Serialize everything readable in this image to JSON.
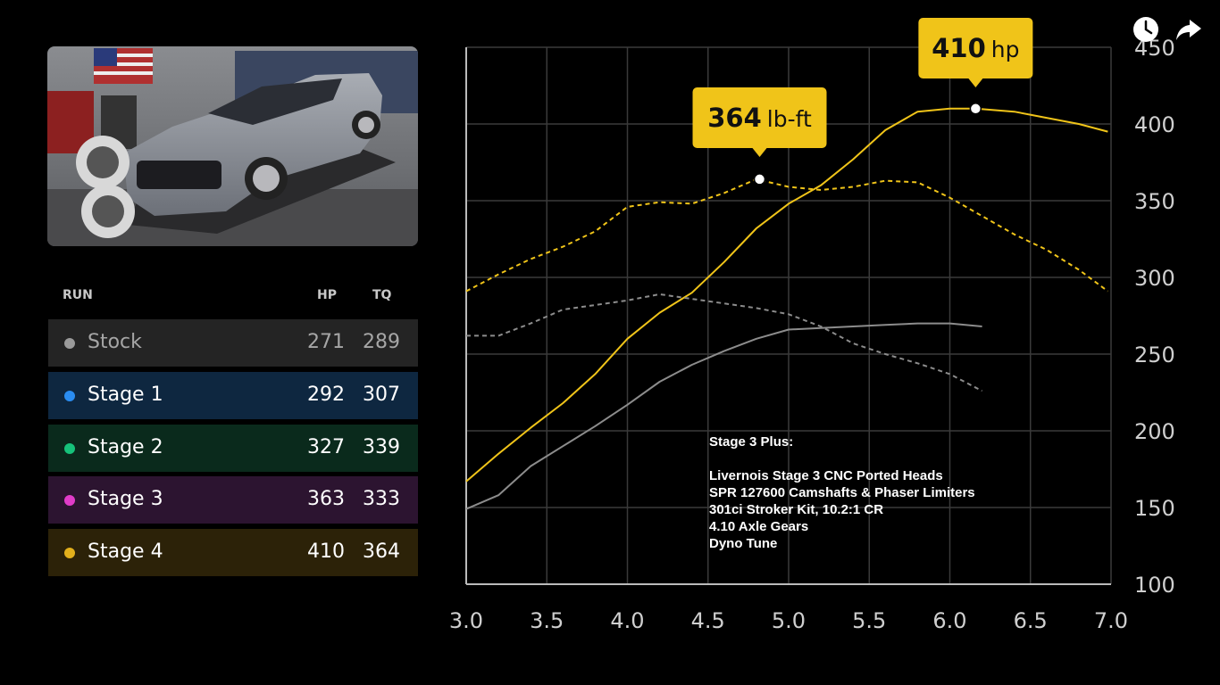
{
  "table": {
    "headers": {
      "run": "RUN",
      "hp": "HP",
      "tq": "TQ"
    },
    "rows": [
      {
        "name": "Stock",
        "hp": "271",
        "tq": "289",
        "dot": "#9a9a9a",
        "bg": "#242424",
        "text": "#a6a6a6"
      },
      {
        "name": "Stage 1",
        "hp": "292",
        "tq": "307",
        "dot": "#2a8cf0",
        "bg": "#0e2740",
        "text": "#ffffff"
      },
      {
        "name": "Stage 2",
        "hp": "327",
        "tq": "339",
        "dot": "#16c27a",
        "bg": "#0a2a1c",
        "text": "#ffffff"
      },
      {
        "name": "Stage 3",
        "hp": "363",
        "tq": "333",
        "dot": "#e03cc8",
        "bg": "#2c1430",
        "text": "#ffffff"
      },
      {
        "name": "Stage 4",
        "hp": "410",
        "tq": "364",
        "dot": "#e2b01c",
        "bg": "#2c2208",
        "text": "#ffffff"
      }
    ]
  },
  "callouts": {
    "torque": {
      "value": "364",
      "unit": "lb-ft"
    },
    "power": {
      "value": "410",
      "unit": "hp"
    }
  },
  "mods": {
    "title": "Stage 3 Plus:",
    "lines": [
      "Livernois Stage 3 CNC Ported Heads",
      "SPR 127600 Camshafts & Phaser Limiters",
      "301ci Stroker Kit, 10.2:1 CR",
      "4.10 Axle Gears",
      "Dyno Tune"
    ]
  },
  "colors": {
    "accent": "#f0c419",
    "stock": "#8c8c8c"
  },
  "icons": {
    "history": "clock-icon",
    "share": "share-arrow-icon"
  },
  "chart_data": {
    "type": "line",
    "xlim": [
      3.0,
      7.0
    ],
    "ylim": [
      100,
      450
    ],
    "x_ticks": [
      "3.0",
      "3.5",
      "4.0",
      "4.5",
      "5.0",
      "5.5",
      "6.0",
      "6.5",
      "7.0"
    ],
    "y_ticks": [
      "100",
      "150",
      "200",
      "250",
      "300",
      "350",
      "400",
      "450"
    ],
    "grid": true,
    "series": [
      {
        "id": "stage4-hp",
        "style": "solid",
        "color": "#f0c419",
        "x": [
          3.0,
          3.2,
          3.4,
          3.6,
          3.8,
          4.0,
          4.2,
          4.4,
          4.6,
          4.8,
          5.0,
          5.2,
          5.4,
          5.6,
          5.8,
          6.0,
          6.16,
          6.4,
          6.6,
          6.8,
          6.98
        ],
        "y": [
          167,
          185,
          202,
          218,
          237,
          260,
          277,
          290,
          310,
          332,
          348,
          360,
          377,
          396,
          408,
          410,
          410,
          408,
          404,
          400,
          395
        ]
      },
      {
        "id": "stage4-tq",
        "style": "dashed",
        "color": "#f0c419",
        "x": [
          3.0,
          3.2,
          3.4,
          3.6,
          3.8,
          4.0,
          4.2,
          4.4,
          4.6,
          4.8,
          5.0,
          5.2,
          5.4,
          5.6,
          5.8,
          6.0,
          6.2,
          6.4,
          6.6,
          6.8,
          6.98
        ],
        "y": [
          291,
          302,
          312,
          320,
          330,
          346,
          349,
          348,
          355,
          364,
          359,
          357,
          359,
          363,
          362,
          352,
          340,
          328,
          318,
          305,
          291
        ]
      },
      {
        "id": "stock-hp",
        "style": "solid",
        "color": "#8c8c8c",
        "x": [
          3.0,
          3.2,
          3.4,
          3.6,
          3.8,
          4.0,
          4.2,
          4.4,
          4.6,
          4.8,
          5.0,
          5.2,
          5.4,
          5.6,
          5.8,
          6.0,
          6.2
        ],
        "y": [
          149,
          158,
          177,
          190,
          203,
          217,
          232,
          243,
          252,
          260,
          266,
          267,
          268,
          269,
          270,
          270,
          268
        ]
      },
      {
        "id": "stock-tq",
        "style": "dashed",
        "color": "#8c8c8c",
        "x": [
          3.0,
          3.2,
          3.4,
          3.6,
          3.8,
          4.0,
          4.2,
          4.4,
          4.6,
          4.8,
          5.0,
          5.2,
          5.4,
          5.6,
          5.8,
          6.0,
          6.2
        ],
        "y": [
          262,
          262,
          270,
          279,
          282,
          285,
          289,
          286,
          283,
          280,
          276,
          268,
          257,
          250,
          244,
          237,
          226
        ]
      }
    ],
    "markers": [
      {
        "series": "stage4-tq",
        "x": 4.82,
        "y": 364
      },
      {
        "series": "stage4-hp",
        "x": 6.16,
        "y": 410
      }
    ]
  }
}
